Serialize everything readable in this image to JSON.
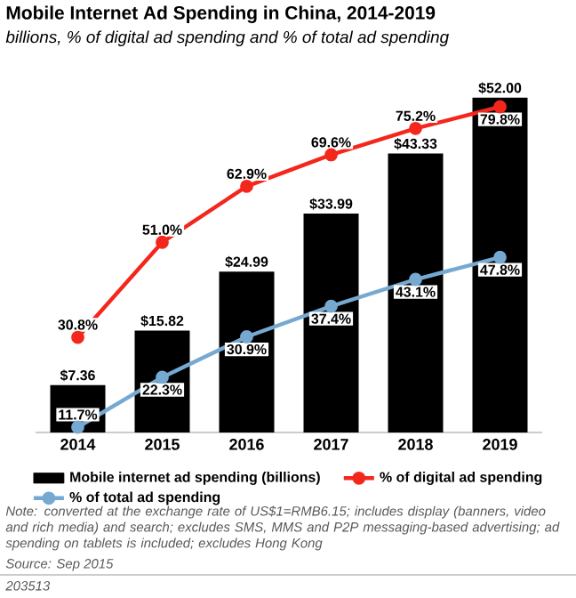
{
  "chart_data": {
    "type": "bar",
    "title": "Mobile Internet Ad Spending in China, 2014-2019",
    "subtitle": "billions, % of digital ad spending and % of total ad spending",
    "categories": [
      "2014",
      "2015",
      "2016",
      "2017",
      "2018",
      "2019"
    ],
    "series": [
      {
        "name": "Mobile internet ad spending (billions)",
        "color": "#000000",
        "values": [
          7.36,
          15.82,
          24.99,
          33.99,
          43.33,
          52.0
        ],
        "value_labels": [
          "$7.36",
          "$15.82",
          "$24.99",
          "$33.99",
          "$43.33",
          "$52.00"
        ]
      },
      {
        "name": "% of digital ad spending",
        "type": "line",
        "axis": "y2",
        "color": "#f4271c",
        "values": [
          30.8,
          51.0,
          62.9,
          69.6,
          75.2,
          79.8
        ],
        "value_labels": [
          "30.8%",
          "51.0%",
          "62.9%",
          "69.6%",
          "75.2%",
          "79.8%"
        ]
      },
      {
        "name": "% of total ad spending",
        "type": "line",
        "axis": "y2",
        "color": "#76a9d2",
        "values": [
          11.7,
          22.3,
          30.9,
          37.4,
          43.1,
          47.8
        ],
        "value_labels": [
          "11.7%",
          "22.3%",
          "30.9%",
          "37.4%",
          "43.1%",
          "47.8%"
        ]
      }
    ],
    "marker": "circle",
    "legend": "bottom",
    "tick_labels": "x",
    "annotations": [
      "Note: converted at the exchange rate of US$1=RMB6.15; includes display (banners, video and rich media) and search; excludes SMS, MMS and P2P messaging-based advertising; ad spending on tablets is included; excludes Hong Kong",
      "Source: Sep 2015",
      "203513"
    ]
  }
}
